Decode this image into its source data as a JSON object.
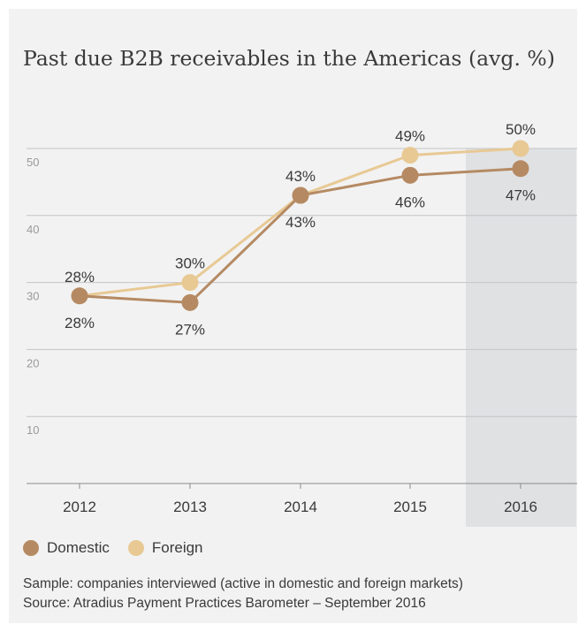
{
  "chart_data": {
    "type": "line",
    "title": "Past due B2B receivables in the Americas (avg. %)",
    "categories": [
      "2012",
      "2013",
      "2014",
      "2015",
      "2016"
    ],
    "ylim": [
      0,
      55
    ],
    "yticks": [
      "10",
      "20",
      "30",
      "40",
      "50"
    ],
    "grid": true,
    "highlight_category": "2016",
    "series": [
      {
        "name": "Domestic",
        "color": "#b58a63",
        "values": [
          28,
          27,
          43,
          46,
          47
        ],
        "labels": [
          "28%",
          "27%",
          "43%",
          "46%",
          "47%"
        ]
      },
      {
        "name": "Foreign",
        "color": "#e8c994",
        "values": [
          28,
          30,
          43,
          49,
          50
        ],
        "labels": [
          "28%",
          "30%",
          "43%",
          "49%",
          "50%"
        ]
      }
    ],
    "legend_position": "bottom-left"
  },
  "footnotes": {
    "sample": "Sample: companies interviewed (active in domestic and foreign markets)",
    "source": "Source: Atradius Payment Practices Barometer – September 2016"
  }
}
